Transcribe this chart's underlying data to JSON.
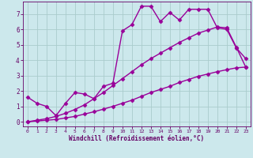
{
  "background_color": "#cce8ec",
  "grid_color": "#aacccc",
  "line_color": "#990099",
  "marker": "D",
  "markersize": 2.5,
  "linewidth": 1.0,
  "xlabel": "Windchill (Refroidissement éolien,°C)",
  "xlabel_color": "#660066",
  "tick_color": "#660066",
  "xlim": [
    -0.5,
    23.5
  ],
  "ylim": [
    -0.3,
    7.8
  ],
  "xticks": [
    0,
    1,
    2,
    3,
    4,
    5,
    6,
    7,
    8,
    9,
    10,
    11,
    12,
    13,
    14,
    15,
    16,
    17,
    18,
    19,
    20,
    21,
    22,
    23
  ],
  "yticks": [
    0,
    1,
    2,
    3,
    4,
    5,
    6,
    7
  ],
  "series": [
    {
      "x": [
        0,
        1,
        2,
        3,
        4,
        5,
        6,
        7,
        8,
        9,
        10,
        11,
        12,
        13,
        14,
        15,
        16,
        17,
        18,
        19,
        20,
        21,
        22,
        23
      ],
      "y": [
        1.6,
        1.2,
        1.0,
        0.4,
        1.2,
        1.9,
        1.8,
        1.5,
        2.3,
        2.5,
        5.9,
        6.3,
        7.5,
        7.5,
        6.5,
        7.1,
        6.6,
        7.3,
        7.3,
        7.3,
        6.1,
        6.0,
        4.8,
        4.1
      ]
    },
    {
      "x": [
        0,
        1,
        2,
        3,
        4,
        5,
        6,
        7,
        8,
        9,
        10,
        11,
        12,
        13,
        14,
        15,
        16,
        17,
        18,
        19,
        20,
        21,
        22,
        23
      ],
      "y": [
        0.0,
        0.05,
        0.1,
        0.15,
        0.25,
        0.35,
        0.5,
        0.65,
        0.82,
        1.0,
        1.2,
        1.4,
        1.65,
        1.9,
        2.1,
        2.3,
        2.55,
        2.75,
        2.95,
        3.1,
        3.25,
        3.38,
        3.5,
        3.55
      ]
    },
    {
      "x": [
        0,
        1,
        2,
        3,
        4,
        5,
        6,
        7,
        8,
        9,
        10,
        11,
        12,
        13,
        14,
        15,
        16,
        17,
        18,
        19,
        20,
        21,
        22,
        23
      ],
      "y": [
        0.0,
        0.1,
        0.2,
        0.35,
        0.55,
        0.8,
        1.1,
        1.5,
        1.9,
        2.35,
        2.8,
        3.25,
        3.7,
        4.1,
        4.45,
        4.8,
        5.15,
        5.45,
        5.75,
        5.95,
        6.15,
        6.1,
        4.85,
        3.55
      ]
    }
  ]
}
